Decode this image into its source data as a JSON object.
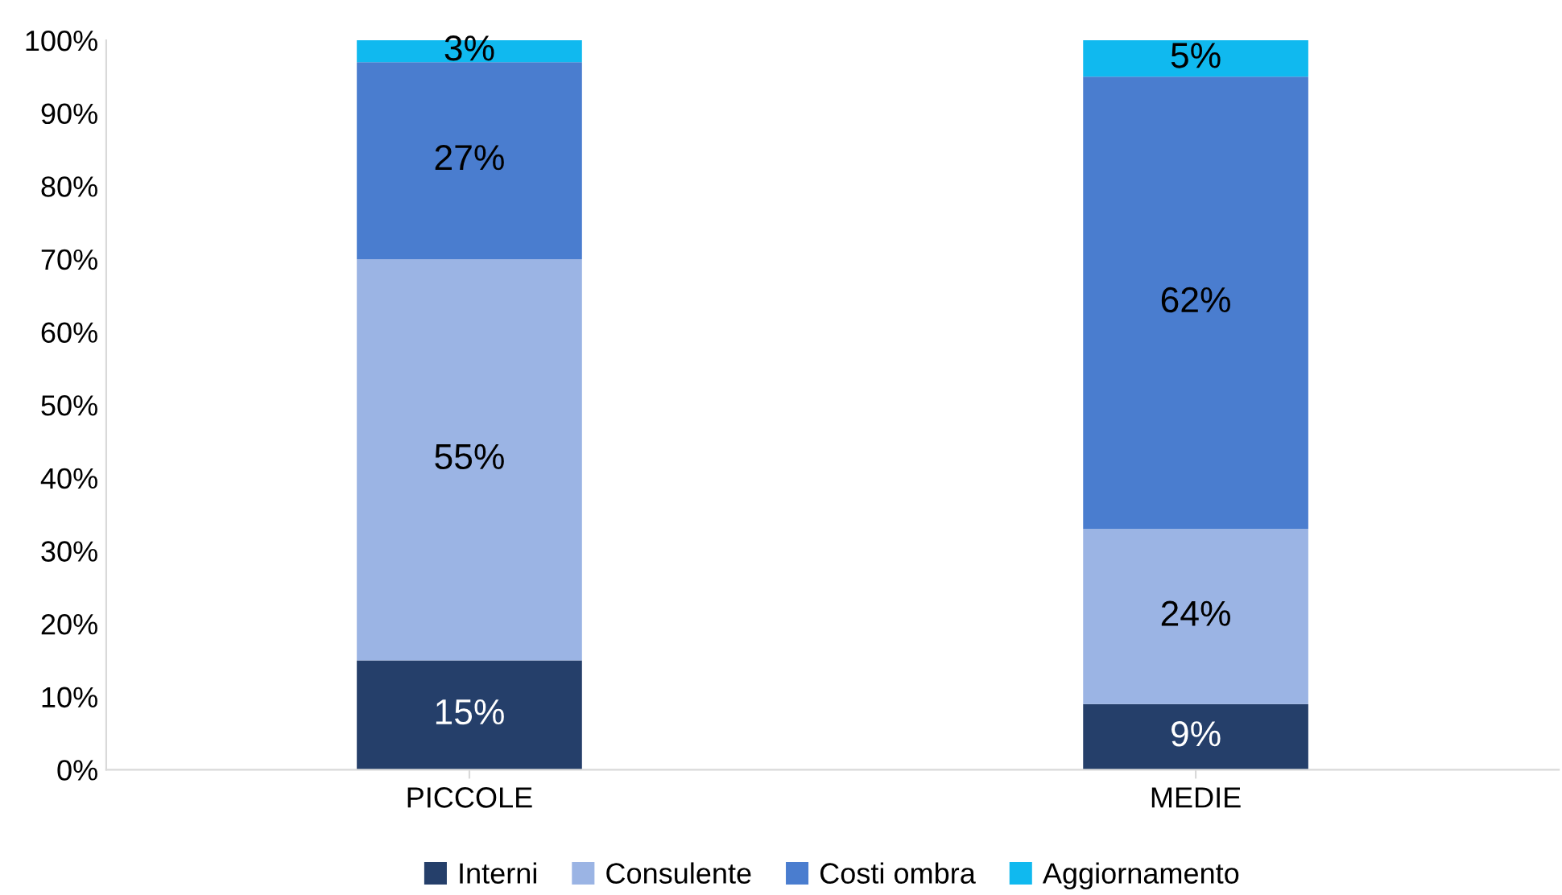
{
  "chart_data": {
    "type": "bar",
    "stacked": true,
    "categories": [
      "PICCOLE",
      "MEDIE"
    ],
    "series": [
      {
        "name": "Interni",
        "color": "#253f6a",
        "values": [
          15,
          9
        ],
        "value_labels": [
          "15%",
          "9%"
        ]
      },
      {
        "name": "Consulente",
        "color": "#9bb4e4",
        "values": [
          55,
          24
        ],
        "value_labels": [
          "55%",
          "24%"
        ]
      },
      {
        "name": "Costi ombra",
        "color": "#4a7dcf",
        "values": [
          27,
          62
        ],
        "value_labels": [
          "27%",
          "62%"
        ]
      },
      {
        "name": "Aggiornamento",
        "color": "#10b9ef",
        "values": [
          3,
          5
        ],
        "value_labels": [
          "3%",
          "5%"
        ]
      }
    ],
    "ylim": [
      0,
      100
    ],
    "yticks": [
      {
        "value": 0,
        "label": "0%"
      },
      {
        "value": 10,
        "label": "10%"
      },
      {
        "value": 20,
        "label": "20%"
      },
      {
        "value": 30,
        "label": "30%"
      },
      {
        "value": 40,
        "label": "40%"
      },
      {
        "value": 50,
        "label": "50%"
      },
      {
        "value": 60,
        "label": "60%"
      },
      {
        "value": 70,
        "label": "70%"
      },
      {
        "value": 80,
        "label": "80%"
      },
      {
        "value": 90,
        "label": "90%"
      },
      {
        "value": 100,
        "label": "100%"
      }
    ],
    "grid": false,
    "legend": "bottom"
  }
}
